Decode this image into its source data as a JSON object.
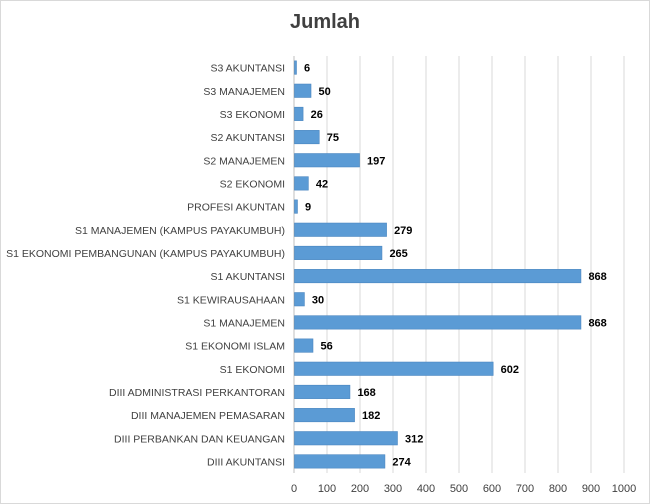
{
  "chart_data": {
    "type": "bar",
    "orientation": "horizontal",
    "title": "Jumlah",
    "xlabel": "",
    "ylabel": "",
    "categories": [
      "S3 AKUNTANSI",
      "S3 MANAJEMEN",
      "S3 EKONOMI",
      "S2 AKUNTANSI",
      "S2 MANAJEMEN",
      "S2 EKONOMI",
      "PROFESI AKUNTAN",
      "S1 MANAJEMEN (KAMPUS PAYAKUMBUH)",
      "S1 EKONOMI PEMBANGUNAN (KAMPUS PAYAKUMBUH)",
      "S1 AKUNTANSI",
      "S1 KEWIRAUSAHAAN",
      "S1 MANAJEMEN",
      "S1 EKONOMI ISLAM",
      "S1 EKONOMI",
      "DIII ADMINISTRASI PERKANTORAN",
      "DIII MANAJEMEN PEMASARAN",
      "DIII PERBANKAN DAN KEUANGAN",
      "DIII AKUNTANSI"
    ],
    "values": [
      6,
      50,
      26,
      75,
      197,
      42,
      9,
      279,
      265,
      868,
      30,
      868,
      56,
      602,
      168,
      182,
      312,
      274
    ],
    "xlim": [
      0,
      1000
    ],
    "xticks": [
      0,
      100,
      200,
      300,
      400,
      500,
      600,
      700,
      800,
      900,
      1000
    ],
    "grid": true,
    "legend": "none",
    "colors": {
      "bar": "#5b9bd5",
      "bar_border": "#4a86c0",
      "grid": "#d9d9d9",
      "text": "#404040"
    }
  }
}
